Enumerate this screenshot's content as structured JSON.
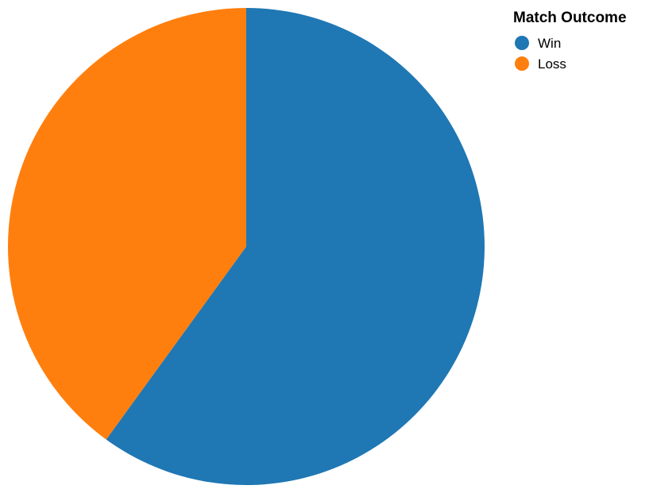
{
  "chart_data": {
    "type": "pie",
    "title": "",
    "slices": [
      {
        "label": "Win",
        "value": 60,
        "color": "#1f77b4"
      },
      {
        "label": "Loss",
        "value": 40,
        "color": "#ff7f0e"
      }
    ],
    "legend": {
      "title": "Match Outcome",
      "placement": "top-right",
      "entries": [
        "Win",
        "Loss"
      ]
    },
    "start_angle_degrees": 0,
    "direction": "clockwise"
  }
}
